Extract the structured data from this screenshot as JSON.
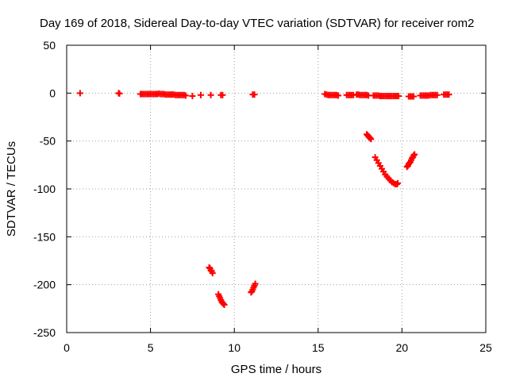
{
  "chart_data": {
    "type": "scatter",
    "title": "Day 169 of 2018, Sidereal Day-to-day VTEC variation (SDTVAR) for receiver rom2",
    "xlabel": "GPS time / hours",
    "ylabel": "SDTVAR / TECUs",
    "xlim": [
      0,
      25
    ],
    "ylim": [
      -250,
      50
    ],
    "x_ticks": [
      0,
      5,
      10,
      15,
      20,
      25
    ],
    "y_ticks": [
      50,
      0,
      -50,
      -100,
      -150,
      -200,
      -250
    ],
    "grid": true,
    "marker": "+",
    "color": "#ff0000",
    "series": [
      {
        "name": "SDTVAR",
        "points": [
          [
            0.8,
            0
          ],
          [
            3.1,
            0
          ],
          [
            3.15,
            -0.5
          ],
          [
            4.4,
            -1
          ],
          [
            4.5,
            -1
          ],
          [
            4.6,
            -1
          ],
          [
            4.7,
            -1
          ],
          [
            4.8,
            -1
          ],
          [
            4.9,
            -1
          ],
          [
            5.0,
            -1
          ],
          [
            5.1,
            -1
          ],
          [
            5.2,
            -1
          ],
          [
            5.3,
            -1
          ],
          [
            5.4,
            -1
          ],
          [
            5.5,
            -0.5
          ],
          [
            5.6,
            -1
          ],
          [
            5.7,
            -1
          ],
          [
            5.8,
            -1
          ],
          [
            5.9,
            -1.5
          ],
          [
            6.0,
            -1.5
          ],
          [
            6.1,
            -1.5
          ],
          [
            6.2,
            -1.5
          ],
          [
            6.3,
            -1.5
          ],
          [
            6.4,
            -1.5
          ],
          [
            6.5,
            -2
          ],
          [
            6.6,
            -2
          ],
          [
            6.7,
            -2
          ],
          [
            6.8,
            -2
          ],
          [
            6.9,
            -2
          ],
          [
            7.0,
            -2
          ],
          [
            7.1,
            -2.5
          ],
          [
            7.5,
            -3
          ],
          [
            8.0,
            -2
          ],
          [
            8.6,
            -2
          ],
          [
            9.2,
            -2
          ],
          [
            9.3,
            -2
          ],
          [
            11.1,
            -1.5
          ],
          [
            11.2,
            -1.5
          ],
          [
            8.5,
            -182
          ],
          [
            8.55,
            -183
          ],
          [
            8.6,
            -185
          ],
          [
            8.65,
            -186
          ],
          [
            8.7,
            -188
          ],
          [
            9.05,
            -210
          ],
          [
            9.1,
            -212
          ],
          [
            9.15,
            -214
          ],
          [
            9.2,
            -216
          ],
          [
            9.25,
            -218
          ],
          [
            9.3,
            -219
          ],
          [
            9.35,
            -220
          ],
          [
            9.4,
            -221
          ],
          [
            11.0,
            -208
          ],
          [
            11.05,
            -207
          ],
          [
            11.1,
            -205
          ],
          [
            11.15,
            -203
          ],
          [
            11.2,
            -201
          ],
          [
            11.25,
            -199
          ],
          [
            15.4,
            -1
          ],
          [
            15.5,
            -1.5
          ],
          [
            15.6,
            -2
          ],
          [
            15.7,
            -2
          ],
          [
            15.8,
            -2
          ],
          [
            15.9,
            -2
          ],
          [
            16.0,
            -2
          ],
          [
            16.1,
            -2
          ],
          [
            16.2,
            -2.5
          ],
          [
            16.7,
            -2
          ],
          [
            16.8,
            -2
          ],
          [
            16.9,
            -2
          ],
          [
            17.0,
            -2
          ],
          [
            17.1,
            -2
          ],
          [
            17.3,
            -1.5
          ],
          [
            17.4,
            -1.5
          ],
          [
            17.5,
            -2
          ],
          [
            17.6,
            -2
          ],
          [
            17.7,
            -2
          ],
          [
            17.8,
            -2
          ],
          [
            17.9,
            -2
          ],
          [
            18.0,
            -2.5
          ],
          [
            18.3,
            -2.5
          ],
          [
            18.4,
            -2.5
          ],
          [
            18.5,
            -2.5
          ],
          [
            18.6,
            -2.5
          ],
          [
            18.7,
            -3
          ],
          [
            18.8,
            -3
          ],
          [
            18.9,
            -3
          ],
          [
            19.0,
            -3
          ],
          [
            19.1,
            -3
          ],
          [
            19.2,
            -3
          ],
          [
            19.3,
            -3
          ],
          [
            19.4,
            -3
          ],
          [
            19.5,
            -3
          ],
          [
            19.6,
            -3
          ],
          [
            19.7,
            -3
          ],
          [
            19.8,
            -3
          ],
          [
            20.4,
            -3.5
          ],
          [
            20.5,
            -3.5
          ],
          [
            20.6,
            -3.5
          ],
          [
            20.7,
            -3.5
          ],
          [
            21.1,
            -2.5
          ],
          [
            21.2,
            -2.5
          ],
          [
            21.3,
            -2.5
          ],
          [
            21.4,
            -2.5
          ],
          [
            21.5,
            -2.5
          ],
          [
            21.6,
            -2.5
          ],
          [
            21.7,
            -2
          ],
          [
            21.8,
            -2
          ],
          [
            21.9,
            -2
          ],
          [
            22.0,
            -2
          ],
          [
            22.1,
            -2
          ],
          [
            22.5,
            -1.5
          ],
          [
            22.6,
            -1.5
          ],
          [
            22.7,
            -1.5
          ],
          [
            22.8,
            -1.5
          ],
          [
            17.9,
            -43
          ],
          [
            17.95,
            -44
          ],
          [
            18.0,
            -45
          ],
          [
            18.05,
            -46
          ],
          [
            18.1,
            -47
          ],
          [
            18.15,
            -48
          ],
          [
            18.4,
            -67
          ],
          [
            18.5,
            -70
          ],
          [
            18.6,
            -73
          ],
          [
            18.7,
            -76
          ],
          [
            18.8,
            -79
          ],
          [
            18.9,
            -82
          ],
          [
            19.0,
            -85
          ],
          [
            19.1,
            -87
          ],
          [
            19.2,
            -89
          ],
          [
            19.3,
            -91
          ],
          [
            19.4,
            -93
          ],
          [
            19.5,
            -94
          ],
          [
            19.6,
            -95
          ],
          [
            19.7,
            -95
          ],
          [
            19.75,
            -94
          ],
          [
            20.3,
            -77
          ],
          [
            20.35,
            -76
          ],
          [
            20.4,
            -74
          ],
          [
            20.45,
            -73
          ],
          [
            20.5,
            -72
          ],
          [
            20.55,
            -70
          ],
          [
            20.6,
            -68
          ],
          [
            20.65,
            -67
          ],
          [
            20.7,
            -65
          ],
          [
            20.75,
            -64
          ]
        ]
      }
    ]
  }
}
